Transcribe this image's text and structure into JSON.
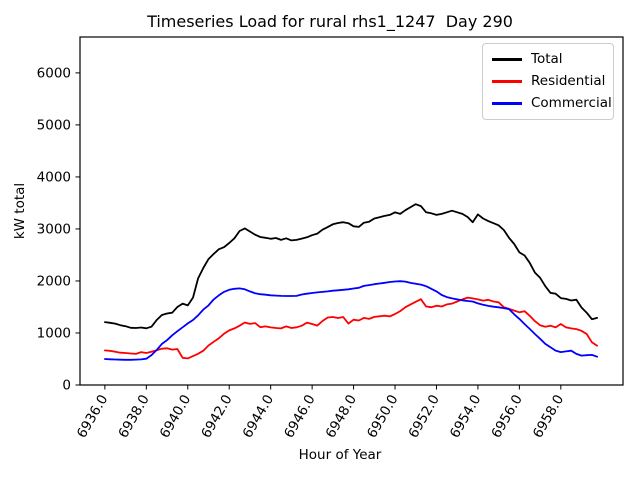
{
  "figure": {
    "title": "Timeseries Load for rural rhs1_1247  Day 290",
    "background_color": "#ffffff"
  },
  "chart_data": {
    "type": "line",
    "title": "Timeseries Load for rural rhs1_1247  Day 290",
    "xlabel": "Hour of Year",
    "ylabel": "kW total",
    "grid": false,
    "legend_position": "upper right",
    "xlim": [
      6934.8,
      6961.0
    ],
    "ylim": [
      0,
      6690
    ],
    "xticks": [
      6936,
      6938,
      6940,
      6942,
      6944,
      6946,
      6948,
      6950,
      6952,
      6954,
      6956,
      6958
    ],
    "xtick_labels": [
      "6936.0",
      "6938.0",
      "6940.0",
      "6942.0",
      "6944.0",
      "6946.0",
      "6948.0",
      "6950.0",
      "6952.0",
      "6954.0",
      "6956.0",
      "6958.0"
    ],
    "xtick_label_rotation_deg": 60,
    "yticks": [
      0,
      1000,
      2000,
      3000,
      4000,
      5000,
      6000
    ],
    "ytick_labels": [
      "0",
      "1000",
      "2000",
      "3000",
      "4000",
      "5000",
      "6000"
    ],
    "x_start": 6936.0,
    "x_step_hours": 0.25,
    "x": [
      6936.0,
      6936.25,
      6936.5,
      6936.75,
      6937.0,
      6937.25,
      6937.5,
      6937.75,
      6938.0,
      6938.25,
      6938.5,
      6938.75,
      6939.0,
      6939.25,
      6939.5,
      6939.75,
      6940.0,
      6940.25,
      6940.5,
      6940.75,
      6941.0,
      6941.25,
      6941.5,
      6941.75,
      6942.0,
      6942.25,
      6942.5,
      6942.75,
      6943.0,
      6943.25,
      6943.5,
      6943.75,
      6944.0,
      6944.25,
      6944.5,
      6944.75,
      6945.0,
      6945.25,
      6945.5,
      6945.75,
      6946.0,
      6946.25,
      6946.5,
      6946.75,
      6947.0,
      6947.25,
      6947.5,
      6947.75,
      6948.0,
      6948.25,
      6948.5,
      6948.75,
      6949.0,
      6949.25,
      6949.5,
      6949.75,
      6950.0,
      6950.25,
      6950.5,
      6950.75,
      6951.0,
      6951.25,
      6951.5,
      6951.75,
      6952.0,
      6952.25,
      6952.5,
      6952.75,
      6953.0,
      6953.25,
      6953.5,
      6953.75,
      6954.0,
      6954.25,
      6954.5,
      6954.75,
      6955.0,
      6955.25,
      6955.5,
      6955.75,
      6956.0,
      6956.25,
      6956.5,
      6956.75,
      6957.0,
      6957.25,
      6957.5,
      6957.75,
      6958.0,
      6958.25,
      6958.5,
      6958.75,
      6959.0,
      6959.25,
      6959.5,
      6959.75
    ],
    "series": [
      {
        "name": "Total",
        "color": "#000000",
        "values": [
          1210,
          1195,
          1180,
          1150,
          1130,
          1100,
          1095,
          1105,
          1090,
          1120,
          1250,
          1345,
          1375,
          1390,
          1500,
          1565,
          1530,
          1680,
          2050,
          2250,
          2420,
          2520,
          2610,
          2650,
          2730,
          2820,
          2960,
          3010,
          2950,
          2890,
          2845,
          2830,
          2810,
          2825,
          2790,
          2820,
          2780,
          2790,
          2815,
          2840,
          2880,
          2910,
          2985,
          3035,
          3090,
          3115,
          3130,
          3110,
          3050,
          3040,
          3120,
          3140,
          3200,
          3225,
          3250,
          3270,
          3320,
          3290,
          3360,
          3420,
          3475,
          3440,
          3320,
          3300,
          3270,
          3290,
          3320,
          3350,
          3320,
          3290,
          3230,
          3130,
          3280,
          3200,
          3150,
          3110,
          3070,
          2980,
          2830,
          2710,
          2550,
          2490,
          2350,
          2160,
          2060,
          1900,
          1770,
          1755,
          1670,
          1655,
          1625,
          1640,
          1490,
          1390,
          1265,
          1290
        ]
      },
      {
        "name": "Residential",
        "color": "#ff0000",
        "values": [
          665,
          655,
          640,
          620,
          615,
          605,
          598,
          632,
          615,
          638,
          668,
          698,
          706,
          680,
          692,
          522,
          512,
          555,
          600,
          660,
          760,
          830,
          900,
          985,
          1050,
          1088,
          1140,
          1202,
          1175,
          1190,
          1112,
          1126,
          1108,
          1096,
          1088,
          1126,
          1096,
          1110,
          1140,
          1200,
          1172,
          1142,
          1230,
          1298,
          1308,
          1288,
          1308,
          1180,
          1255,
          1240,
          1290,
          1270,
          1310,
          1320,
          1332,
          1318,
          1365,
          1420,
          1495,
          1550,
          1600,
          1650,
          1510,
          1495,
          1525,
          1510,
          1550,
          1565,
          1605,
          1645,
          1680,
          1665,
          1645,
          1622,
          1638,
          1605,
          1590,
          1495,
          1465,
          1430,
          1398,
          1418,
          1330,
          1228,
          1148,
          1118,
          1140,
          1108,
          1172,
          1108,
          1088,
          1075,
          1042,
          980,
          820,
          755
        ]
      },
      {
        "name": "Commercial",
        "color": "#0000ff",
        "values": [
          500,
          495,
          490,
          487,
          485,
          484,
          488,
          492,
          505,
          575,
          672,
          790,
          862,
          955,
          1035,
          1110,
          1185,
          1250,
          1340,
          1450,
          1530,
          1645,
          1725,
          1790,
          1830,
          1850,
          1858,
          1840,
          1800,
          1762,
          1745,
          1735,
          1725,
          1718,
          1712,
          1710,
          1710,
          1712,
          1740,
          1755,
          1768,
          1780,
          1790,
          1800,
          1812,
          1820,
          1830,
          1840,
          1855,
          1868,
          1905,
          1920,
          1938,
          1952,
          1965,
          1980,
          1990,
          1995,
          1988,
          1962,
          1945,
          1930,
          1900,
          1850,
          1800,
          1730,
          1690,
          1665,
          1645,
          1628,
          1615,
          1605,
          1568,
          1542,
          1520,
          1505,
          1494,
          1478,
          1460,
          1360,
          1270,
          1170,
          1078,
          980,
          888,
          790,
          725,
          662,
          632,
          645,
          660,
          598,
          565,
          572,
          578,
          545
        ]
      }
    ]
  }
}
